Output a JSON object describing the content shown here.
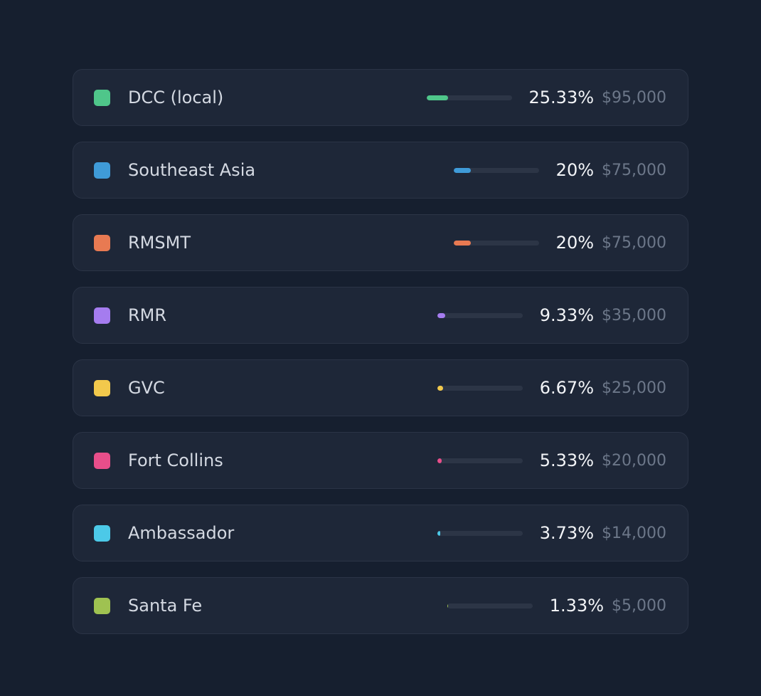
{
  "items": [
    {
      "name": "DCC (local)",
      "color": "#4fc68a",
      "percent": 25.33,
      "percent_label": "25.33%",
      "amount": "$95,000"
    },
    {
      "name": "Southeast Asia",
      "color": "#3f9bd8",
      "percent": 20,
      "percent_label": "20%",
      "amount": "$75,000"
    },
    {
      "name": "RMSMT",
      "color": "#e87a52",
      "percent": 20,
      "percent_label": "20%",
      "amount": "$75,000"
    },
    {
      "name": "RMR",
      "color": "#a57cef",
      "percent": 9.33,
      "percent_label": "9.33%",
      "amount": "$35,000"
    },
    {
      "name": "GVC",
      "color": "#f2c94c",
      "percent": 6.67,
      "percent_label": "6.67%",
      "amount": "$25,000"
    },
    {
      "name": "Fort Collins",
      "color": "#e84e8a",
      "percent": 5.33,
      "percent_label": "5.33%",
      "amount": "$20,000"
    },
    {
      "name": "Ambassador",
      "color": "#4cc9e8",
      "percent": 3.73,
      "percent_label": "3.73%",
      "amount": "$14,000"
    },
    {
      "name": "Santa Fe",
      "color": "#9fc251",
      "percent": 1.33,
      "percent_label": "1.33%",
      "amount": "$5,000"
    }
  ]
}
